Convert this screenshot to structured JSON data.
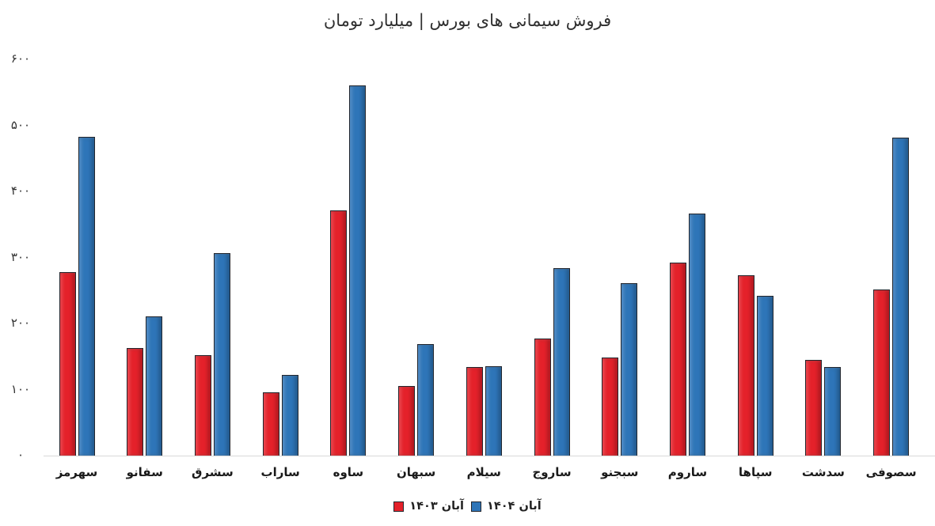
{
  "title": "فروش سیمانی های بورس | میلیارد تومان",
  "chart_data": {
    "type": "bar",
    "title": "فروش سیمانی های بورس | میلیارد تومان",
    "xlabel": "",
    "ylabel": "",
    "ylim": [
      0,
      600
    ],
    "grid": false,
    "legend_position": "bottom-center",
    "categories": [
      "سهرمز",
      "سفانو",
      "سشرق",
      "ساراب",
      "ساوه",
      "سبهان",
      "سیلام",
      "ساروج",
      "سبجنو",
      "ساروم",
      "سپاها",
      "سدشت",
      "سصوفی"
    ],
    "series": [
      {
        "name": "آبان ۱۴۰۳",
        "color": "#e4212a",
        "values": [
          278,
          163,
          152,
          96,
          371,
          105,
          134,
          177,
          148,
          292,
          273,
          145,
          251
        ]
      },
      {
        "name": "آبان ۱۴۰۴",
        "color": "#2e75b8",
        "values": [
          483,
          211,
          307,
          122,
          560,
          169,
          135,
          284,
          261,
          366,
          242,
          134,
          481
        ]
      }
    ],
    "yticks": [
      {
        "value": 600,
        "label": "۶۰۰"
      },
      {
        "value": 500,
        "label": "۵۰۰"
      },
      {
        "value": 400,
        "label": "۴۰۰"
      },
      {
        "value": 300,
        "label": "۳۰۰"
      },
      {
        "value": 200,
        "label": "۲۰۰"
      },
      {
        "value": 100,
        "label": "۱۰۰"
      },
      {
        "value": 0,
        "label": "۰"
      }
    ],
    "axis_line_color": "#d9d9d9",
    "bar_border_color": "#23262d"
  }
}
